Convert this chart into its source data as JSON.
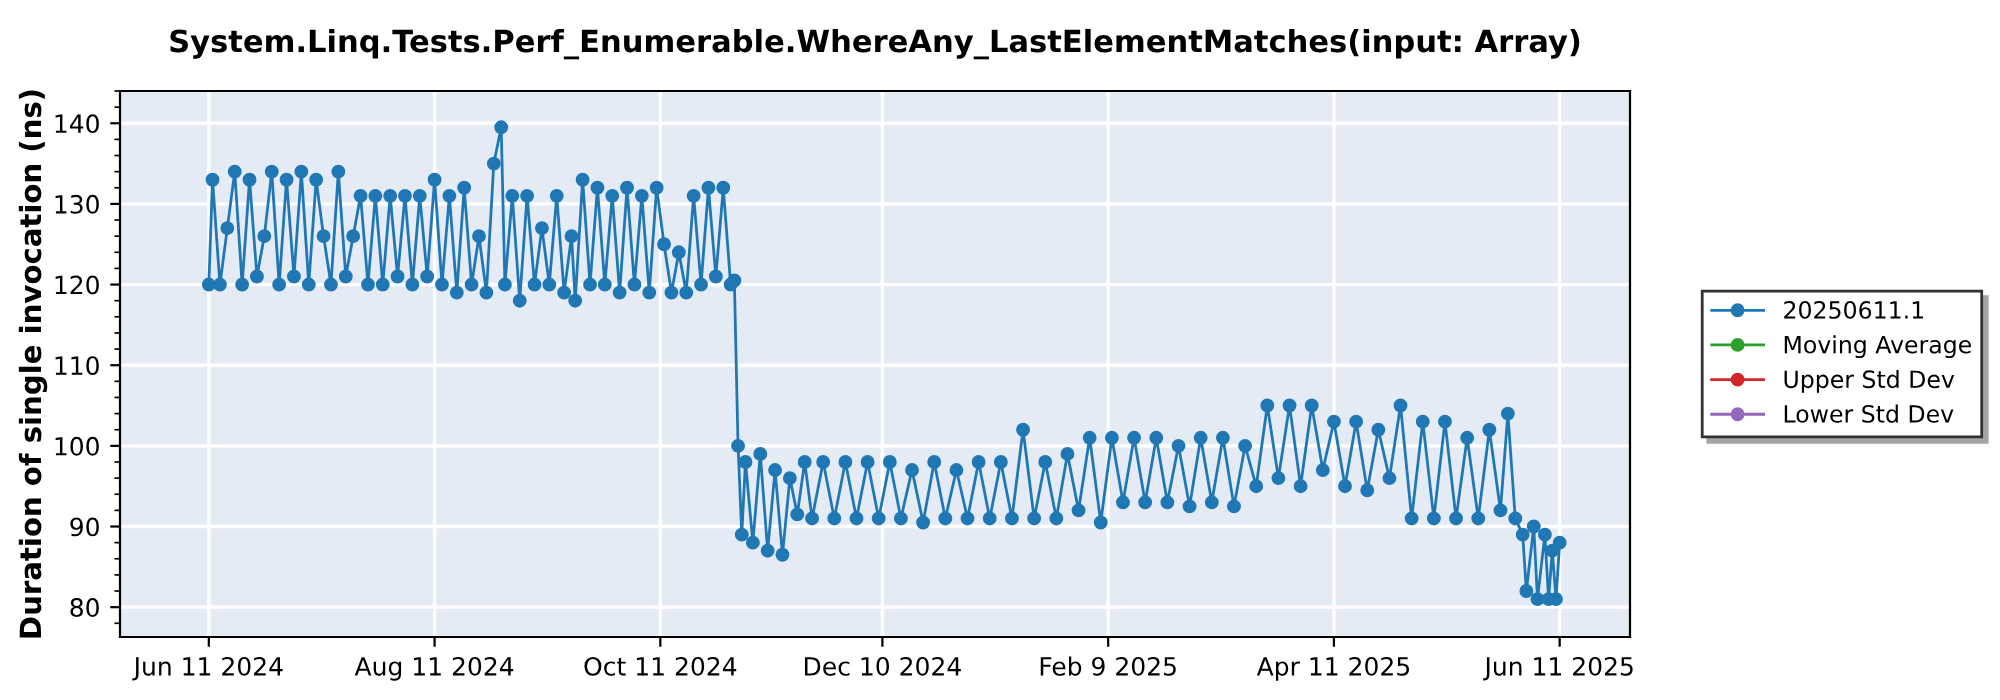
{
  "chart_data": {
    "type": "line",
    "title": "System.Linq.Tests.Perf_Enumerable.WhereAny_LastElementMatches(input: Array)",
    "ylabel": "Duration of single invocation (ns)",
    "xlim": [
      "2024-05-18",
      "2025-06-30"
    ],
    "ylim": [
      76.3,
      144
    ],
    "xticks": [
      {
        "value": "2024-06-11",
        "label": "Jun 11 2024"
      },
      {
        "value": "2024-08-11",
        "label": "Aug 11 2024"
      },
      {
        "value": "2024-10-11",
        "label": "Oct 11 2024"
      },
      {
        "value": "2024-12-10",
        "label": "Dec 10 2024"
      },
      {
        "value": "2025-02-09",
        "label": "Feb 9 2025"
      },
      {
        "value": "2025-04-11",
        "label": "Apr 11 2025"
      },
      {
        "value": "2025-06-11",
        "label": "Jun 11 2025"
      }
    ],
    "yticks": [
      80,
      90,
      100,
      110,
      120,
      130,
      140
    ],
    "grid": true,
    "legend": "right",
    "marker": "circle",
    "line_style": "solid",
    "series": [
      {
        "name": "20250611.1",
        "color": "#1f77b4",
        "x": [
          "2024-06-11",
          "2024-06-12",
          "2024-06-14",
          "2024-06-16",
          "2024-06-18",
          "2024-06-20",
          "2024-06-22",
          "2024-06-24",
          "2024-06-26",
          "2024-06-28",
          "2024-06-30",
          "2024-07-02",
          "2024-07-04",
          "2024-07-06",
          "2024-07-08",
          "2024-07-10",
          "2024-07-12",
          "2024-07-14",
          "2024-07-16",
          "2024-07-18",
          "2024-07-20",
          "2024-07-22",
          "2024-07-24",
          "2024-07-26",
          "2024-07-28",
          "2024-07-30",
          "2024-08-01",
          "2024-08-03",
          "2024-08-05",
          "2024-08-07",
          "2024-08-09",
          "2024-08-11",
          "2024-08-13",
          "2024-08-15",
          "2024-08-17",
          "2024-08-19",
          "2024-08-21",
          "2024-08-23",
          "2024-08-25",
          "2024-08-27",
          "2024-08-29",
          "2024-08-30",
          "2024-09-01",
          "2024-09-03",
          "2024-09-05",
          "2024-09-07",
          "2024-09-09",
          "2024-09-11",
          "2024-09-13",
          "2024-09-15",
          "2024-09-17",
          "2024-09-18",
          "2024-09-20",
          "2024-09-22",
          "2024-09-24",
          "2024-09-26",
          "2024-09-28",
          "2024-09-30",
          "2024-10-02",
          "2024-10-04",
          "2024-10-06",
          "2024-10-08",
          "2024-10-10",
          "2024-10-12",
          "2024-10-14",
          "2024-10-16",
          "2024-10-18",
          "2024-10-20",
          "2024-10-22",
          "2024-10-24",
          "2024-10-26",
          "2024-10-28",
          "2024-10-30",
          "2024-10-31",
          "2024-11-01",
          "2024-11-02",
          "2024-11-03",
          "2024-11-05",
          "2024-11-07",
          "2024-11-09",
          "2024-11-11",
          "2024-11-13",
          "2024-11-15",
          "2024-11-17",
          "2024-11-19",
          "2024-11-21",
          "2024-11-24",
          "2024-11-27",
          "2024-11-30",
          "2024-12-03",
          "2024-12-06",
          "2024-12-09",
          "2024-12-12",
          "2024-12-15",
          "2024-12-18",
          "2024-12-21",
          "2024-12-24",
          "2024-12-27",
          "2024-12-30",
          "2025-01-02",
          "2025-01-05",
          "2025-01-08",
          "2025-01-11",
          "2025-01-14",
          "2025-01-17",
          "2025-01-20",
          "2025-01-23",
          "2025-01-26",
          "2025-01-29",
          "2025-02-01",
          "2025-02-04",
          "2025-02-07",
          "2025-02-10",
          "2025-02-13",
          "2025-02-16",
          "2025-02-19",
          "2025-02-22",
          "2025-02-25",
          "2025-02-28",
          "2025-03-03",
          "2025-03-06",
          "2025-03-09",
          "2025-03-12",
          "2025-03-15",
          "2025-03-18",
          "2025-03-21",
          "2025-03-24",
          "2025-03-27",
          "2025-03-30",
          "2025-04-02",
          "2025-04-05",
          "2025-04-08",
          "2025-04-11",
          "2025-04-14",
          "2025-04-17",
          "2025-04-20",
          "2025-04-23",
          "2025-04-26",
          "2025-04-29",
          "2025-05-02",
          "2025-05-05",
          "2025-05-08",
          "2025-05-11",
          "2025-05-14",
          "2025-05-17",
          "2025-05-20",
          "2025-05-23",
          "2025-05-26",
          "2025-05-28",
          "2025-05-30",
          "2025-06-01",
          "2025-06-02",
          "2025-06-04",
          "2025-06-05",
          "2025-06-07",
          "2025-06-08",
          "2025-06-09",
          "2025-06-10",
          "2025-06-11"
        ],
        "values": [
          120,
          133,
          120,
          127,
          134,
          120,
          133,
          121,
          126,
          134,
          120,
          133,
          121,
          134,
          120,
          133,
          126,
          120,
          134,
          121,
          126,
          131,
          120,
          131,
          120,
          131,
          121,
          131,
          120,
          131,
          121,
          133,
          120,
          131,
          119,
          132,
          120,
          126,
          119,
          135,
          139.5,
          120,
          131,
          118,
          131,
          120,
          127,
          120,
          131,
          119,
          126,
          118,
          133,
          120,
          132,
          120,
          131,
          119,
          132,
          120,
          131,
          119,
          132,
          125,
          119,
          124,
          119,
          131,
          120,
          132,
          121,
          132,
          120,
          120.5,
          100,
          89,
          98,
          88,
          99,
          87,
          97,
          86.5,
          96,
          91.5,
          98,
          91,
          98,
          91,
          98,
          91,
          98,
          91,
          98,
          91,
          97,
          90.5,
          98,
          91,
          97,
          91,
          98,
          91,
          98,
          91,
          102,
          91,
          98,
          91,
          99,
          92,
          101,
          90.5,
          101,
          93,
          101,
          93,
          101,
          93,
          100,
          92.5,
          101,
          93,
          101,
          92.5,
          100,
          95,
          105,
          96,
          105,
          95,
          105,
          97,
          103,
          95,
          103,
          94.5,
          102,
          96,
          105,
          91,
          103,
          91,
          103,
          91,
          101,
          91,
          102,
          92,
          104,
          91,
          89,
          82,
          90,
          81,
          89,
          81,
          87,
          81,
          88
        ]
      },
      {
        "name": "Moving Average",
        "color": "#2ca02c"
      },
      {
        "name": "Upper Std Dev",
        "color": "#d62728"
      },
      {
        "name": "Lower Std Dev",
        "color": "#9467bd"
      }
    ]
  }
}
